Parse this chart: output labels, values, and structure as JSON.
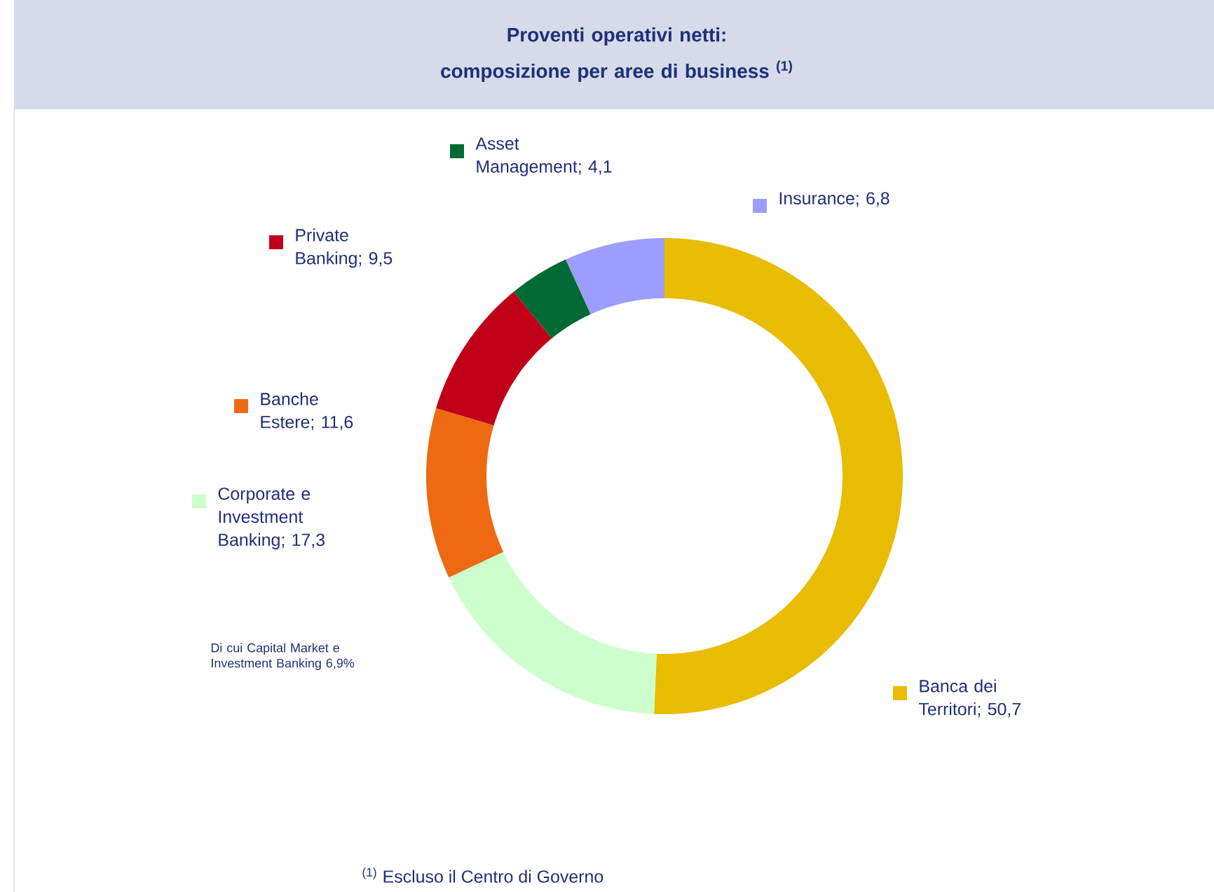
{
  "chart_data": {
    "type": "donut",
    "title": "Proventi operativi netti: composizione per aree di business $^{(1)}$",
    "categories": [
      "Banca dei Territori",
      "Corporate e Investment Banking",
      "Banche Estere",
      "Private Banking",
      "Asset Management",
      "Insurance"
    ],
    "values": [
      50.7,
      17.3,
      11.6,
      9.5,
      4.1,
      6.8
    ],
    "value_labels": [
      "; 50,7",
      "; 17,3",
      "; 11,6",
      "; 9,5",
      "; 4,1",
      "; 6,8"
    ],
    "colors": [
      "#e8bc00",
      "#ccffcc",
      "#ee6a12",
      "#c00018",
      "#006a35",
      "#9d9dff"
    ],
    "annotations": [
      "Di cui Capital Market e Investment Banking 6,9%",
      "$^{(1)}$ Escluso il Centro di Governo"
    ],
    "legend": "left"
  }
}
